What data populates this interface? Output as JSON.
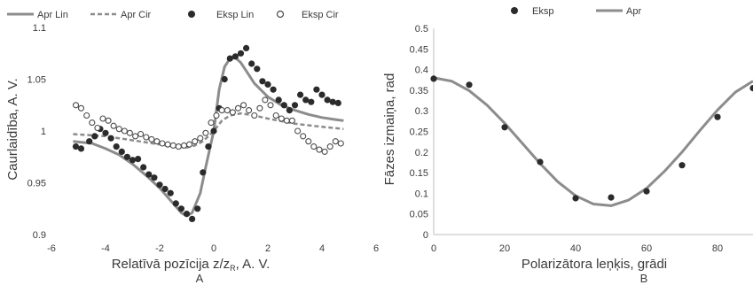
{
  "chart_data": [
    {
      "type": "scatter",
      "panel_label": "A",
      "xlabel": "Relatīvā pozīcija z/z",
      "xlabel_subscript": "R",
      "xlabel_suffix": ", A. V.",
      "ylabel": "Caurlaidība, A. V.",
      "xlim": [
        -6,
        6
      ],
      "ylim": [
        0.9,
        1.1
      ],
      "xticks": [
        "-6",
        "-4",
        "-2",
        "0",
        "2",
        "4",
        "6"
      ],
      "yticks": [
        "0.9",
        "0.95",
        "1",
        "1.05",
        "1.1"
      ],
      "grid": false,
      "legend_position": "top",
      "colors": {
        "line": "#8c8c8c",
        "dot": "#2b2b2b",
        "open": "#4a4a4a"
      },
      "series": [
        {
          "name": "Apr Lin",
          "kind": "line",
          "x": [
            -5.2,
            -4.5,
            -4,
            -3.5,
            -3,
            -2.5,
            -2,
            -1.5,
            -1.2,
            -1,
            -0.8,
            -0.5,
            -0.3,
            0,
            0.2,
            0.4,
            0.6,
            0.8,
            1,
            1.2,
            1.5,
            2,
            2.5,
            3,
            3.5,
            4,
            4.5,
            4.8
          ],
          "y": [
            0.99,
            0.988,
            0.983,
            0.977,
            0.968,
            0.957,
            0.945,
            0.93,
            0.921,
            0.918,
            0.921,
            0.94,
            0.965,
            1.0,
            1.04,
            1.062,
            1.07,
            1.071,
            1.066,
            1.058,
            1.046,
            1.033,
            1.025,
            1.02,
            1.016,
            1.013,
            1.011,
            1.01
          ]
        },
        {
          "name": "Apr Cir",
          "kind": "dashed",
          "x": [
            -5.2,
            -4,
            -3,
            -2,
            -1.5,
            -1,
            -0.7,
            -0.4,
            0,
            0.3,
            0.6,
            1,
            1.5,
            2,
            3,
            4,
            4.8
          ],
          "y": [
            0.997,
            0.995,
            0.991,
            0.987,
            0.985,
            0.984,
            0.986,
            0.99,
            1.0,
            1.01,
            1.015,
            1.017,
            1.015,
            1.012,
            1.007,
            1.004,
            1.002
          ]
        },
        {
          "name": "Eksp Lin",
          "kind": "dots",
          "x": [
            -5.1,
            -4.9,
            -4.6,
            -4.4,
            -4.2,
            -4.0,
            -3.8,
            -3.6,
            -3.4,
            -3.2,
            -3.0,
            -2.8,
            -2.6,
            -2.4,
            -2.2,
            -2.0,
            -1.8,
            -1.6,
            -1.4,
            -1.2,
            -1.0,
            -0.8,
            -0.6,
            -0.4,
            -0.2,
            0.0,
            0.2,
            0.4,
            0.6,
            0.8,
            1.0,
            1.2,
            1.4,
            1.6,
            1.8,
            2.0,
            2.2,
            2.4,
            2.6,
            2.8,
            3.0,
            3.2,
            3.4,
            3.6,
            3.8,
            4.0,
            4.2,
            4.4,
            4.6
          ],
          "y": [
            0.985,
            0.983,
            0.99,
            0.995,
            1.002,
            0.998,
            0.993,
            0.985,
            0.98,
            0.975,
            0.972,
            0.973,
            0.965,
            0.958,
            0.955,
            0.948,
            0.944,
            0.94,
            0.93,
            0.925,
            0.92,
            0.915,
            0.925,
            0.96,
            0.985,
            1.0,
            1.022,
            1.05,
            1.07,
            1.072,
            1.075,
            1.08,
            1.065,
            1.06,
            1.048,
            1.045,
            1.04,
            1.03,
            1.025,
            1.02,
            1.025,
            1.035,
            1.03,
            1.028,
            1.04,
            1.035,
            1.03,
            1.028,
            1.027
          ]
        },
        {
          "name": "Eksp Cir",
          "kind": "open",
          "x": [
            -5.1,
            -4.9,
            -4.7,
            -4.5,
            -4.3,
            -4.1,
            -3.9,
            -3.7,
            -3.5,
            -3.3,
            -3.1,
            -2.9,
            -2.7,
            -2.5,
            -2.3,
            -2.1,
            -1.9,
            -1.7,
            -1.5,
            -1.3,
            -1.1,
            -0.9,
            -0.7,
            -0.5,
            -0.3,
            -0.1,
            0.1,
            0.3,
            0.5,
            0.7,
            0.9,
            1.1,
            1.3,
            1.5,
            1.7,
            1.9,
            2.1,
            2.3,
            2.5,
            2.7,
            2.9,
            3.1,
            3.3,
            3.5,
            3.7,
            3.9,
            4.1,
            4.3,
            4.5,
            4.7
          ],
          "y": [
            1.025,
            1.022,
            1.015,
            1.008,
            1.003,
            1.012,
            1.01,
            1.005,
            1.002,
            1.0,
            0.998,
            0.995,
            0.997,
            0.994,
            0.992,
            0.99,
            0.988,
            0.987,
            0.986,
            0.985,
            0.986,
            0.987,
            0.99,
            0.993,
            0.998,
            1.008,
            1.015,
            1.02,
            1.02,
            1.018,
            1.022,
            1.025,
            1.02,
            1.015,
            1.022,
            1.03,
            1.025,
            1.015,
            1.012,
            1.01,
            1.01,
            1.0,
            0.995,
            0.99,
            0.985,
            0.982,
            0.98,
            0.985,
            0.99,
            0.988
          ]
        }
      ]
    },
    {
      "type": "scatter",
      "panel_label": "B",
      "xlabel": "Polarizātora leņķis, grādi",
      "ylabel": "Fāzes izmaiņa, rad",
      "xlim": [
        0,
        90
      ],
      "ylim": [
        0,
        0.5
      ],
      "xticks": [
        "0",
        "20",
        "40",
        "60",
        "80"
      ],
      "yticks": [
        "0",
        "0.05",
        "0.1",
        "0.15",
        "0.2",
        "0.25",
        "0.3",
        "0.35",
        "0.4",
        "0.45",
        "0.5"
      ],
      "grid": false,
      "legend_position": "top",
      "series": [
        {
          "name": "Eksp",
          "kind": "dots",
          "x": [
            0,
            10,
            20,
            30,
            40,
            50,
            60,
            70,
            80,
            90
          ],
          "y": [
            0.378,
            0.363,
            0.26,
            0.176,
            0.088,
            0.09,
            0.105,
            0.168,
            0.285,
            0.355
          ]
        },
        {
          "name": "Apr",
          "kind": "line",
          "x": [
            0,
            5,
            10,
            15,
            20,
            25,
            30,
            35,
            40,
            45,
            50,
            55,
            60,
            65,
            70,
            75,
            80,
            85,
            90
          ],
          "y": [
            0.38,
            0.372,
            0.349,
            0.314,
            0.27,
            0.221,
            0.172,
            0.128,
            0.094,
            0.074,
            0.07,
            0.084,
            0.112,
            0.153,
            0.2,
            0.252,
            0.302,
            0.345,
            0.372
          ]
        }
      ]
    }
  ]
}
